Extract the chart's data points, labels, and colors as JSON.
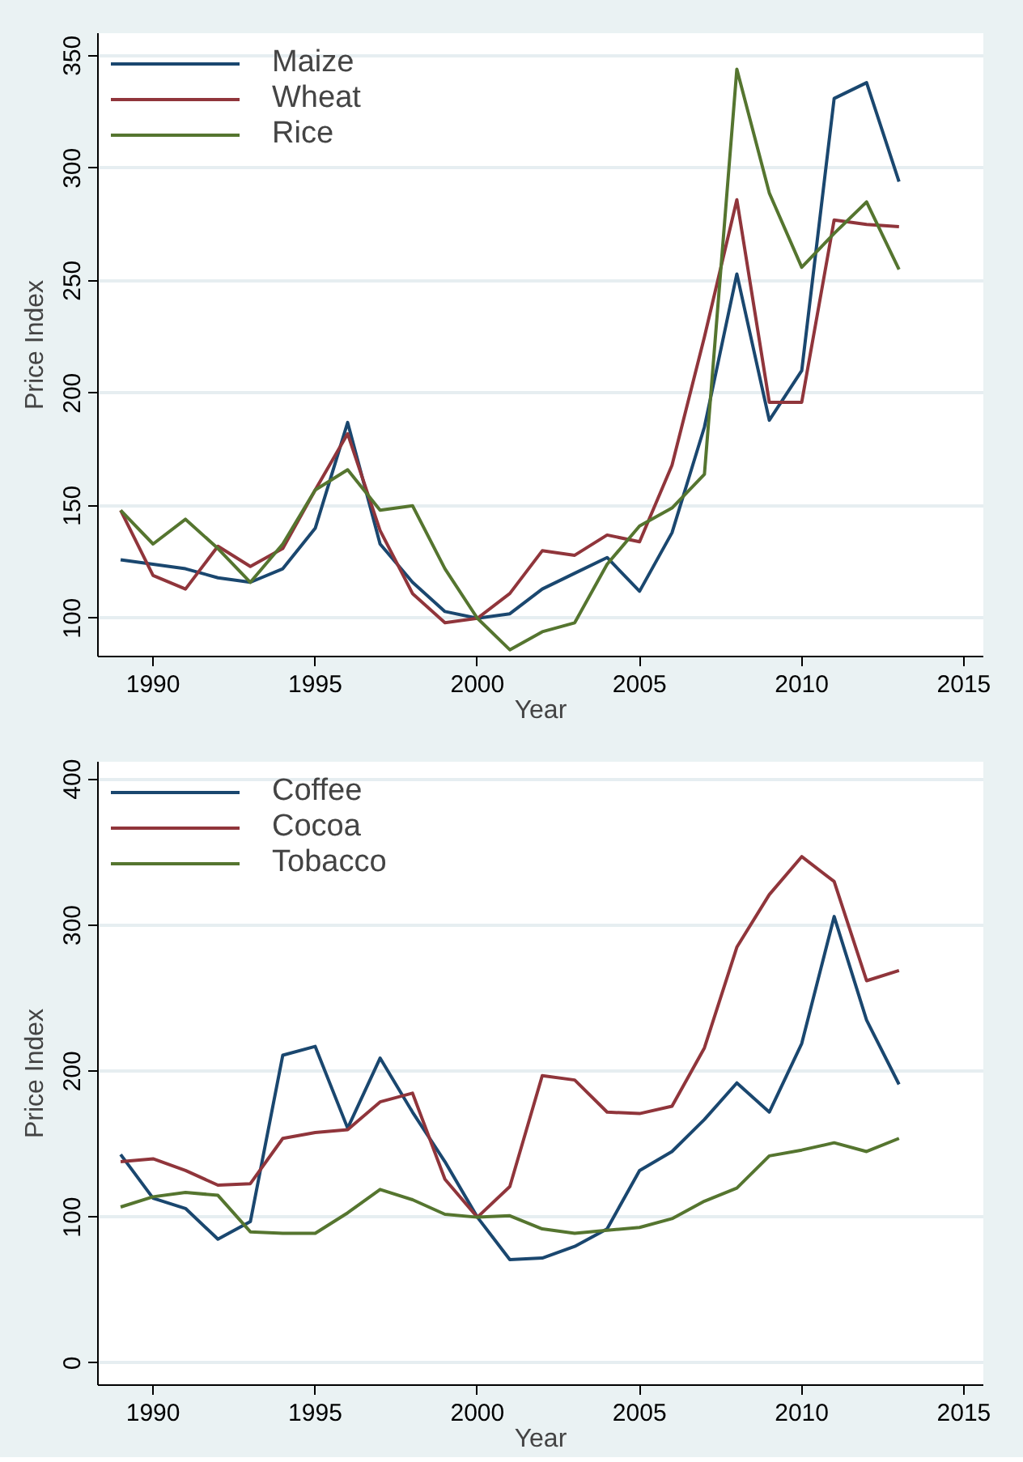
{
  "chart_data": [
    {
      "type": "line",
      "xlabel": "Year",
      "ylabel": "Price Index",
      "x": [
        1989,
        1990,
        1991,
        1992,
        1993,
        1994,
        1995,
        1996,
        1997,
        1998,
        1999,
        2000,
        2001,
        2002,
        2003,
        2004,
        2005,
        2006,
        2007,
        2008,
        2009,
        2010,
        2011,
        2012,
        2013
      ],
      "series": [
        {
          "name": "Maize",
          "color": "#1a476f",
          "values": [
            126,
            124,
            122,
            118,
            116,
            122,
            140,
            187,
            133,
            116,
            103,
            100,
            102,
            113,
            120,
            127,
            112,
            138,
            185,
            253,
            188,
            210,
            331,
            338,
            294
          ]
        },
        {
          "name": "Wheat",
          "color": "#90353b",
          "values": [
            148,
            119,
            113,
            132,
            123,
            131,
            157,
            182,
            139,
            111,
            98,
            100,
            111,
            130,
            128,
            137,
            134,
            168,
            225,
            286,
            196,
            196,
            277,
            275,
            274
          ]
        },
        {
          "name": "Rice",
          "color": "#55752f",
          "values": [
            148,
            133,
            144,
            131,
            116,
            133,
            157,
            166,
            148,
            150,
            122,
            100,
            86,
            94,
            98,
            124,
            141,
            149,
            164,
            344,
            289,
            256,
            271,
            285,
            255
          ]
        }
      ],
      "xlim": [
        1988.3,
        2015.6
      ],
      "xticks": [
        1990,
        1995,
        2000,
        2005,
        2010,
        2015
      ],
      "ylim": [
        83,
        360
      ],
      "yticks": [
        100,
        150,
        200,
        250,
        300,
        350
      ],
      "grid": "y",
      "legend": "top left",
      "line_style": "solid",
      "marker": "none"
    },
    {
      "type": "line",
      "xlabel": "Year",
      "ylabel": "Price Index",
      "x": [
        1989,
        1990,
        1991,
        1992,
        1993,
        1994,
        1995,
        1996,
        1997,
        1998,
        1999,
        2000,
        2001,
        2002,
        2003,
        2004,
        2005,
        2006,
        2007,
        2008,
        2009,
        2010,
        2011,
        2012,
        2013
      ],
      "series": [
        {
          "name": "Coffee",
          "color": "#1a476f",
          "values": [
            143,
            113,
            106,
            85,
            97,
            211,
            217,
            161,
            209,
            172,
            138,
            100,
            71,
            72,
            80,
            92,
            132,
            145,
            167,
            192,
            172,
            219,
            306,
            235,
            191
          ]
        },
        {
          "name": "Cocoa",
          "color": "#90353b",
          "values": [
            138,
            140,
            132,
            122,
            123,
            154,
            158,
            160,
            179,
            185,
            126,
            100,
            121,
            197,
            194,
            172,
            171,
            176,
            216,
            285,
            321,
            347,
            330,
            262,
            269
          ]
        },
        {
          "name": "Tobacco",
          "color": "#55752f",
          "values": [
            107,
            114,
            117,
            115,
            90,
            89,
            89,
            103,
            119,
            112,
            102,
            100,
            101,
            92,
            89,
            91,
            93,
            99,
            111,
            120,
            142,
            146,
            151,
            145,
            154
          ]
        }
      ],
      "xlim": [
        1988.3,
        2015.6
      ],
      "xticks": [
        1990,
        1995,
        2000,
        2005,
        2010,
        2015
      ],
      "ylim": [
        -15,
        412
      ],
      "yticks": [
        0,
        100,
        200,
        300,
        400
      ],
      "grid": "y",
      "legend": "top left",
      "line_style": "solid",
      "marker": "none"
    }
  ]
}
